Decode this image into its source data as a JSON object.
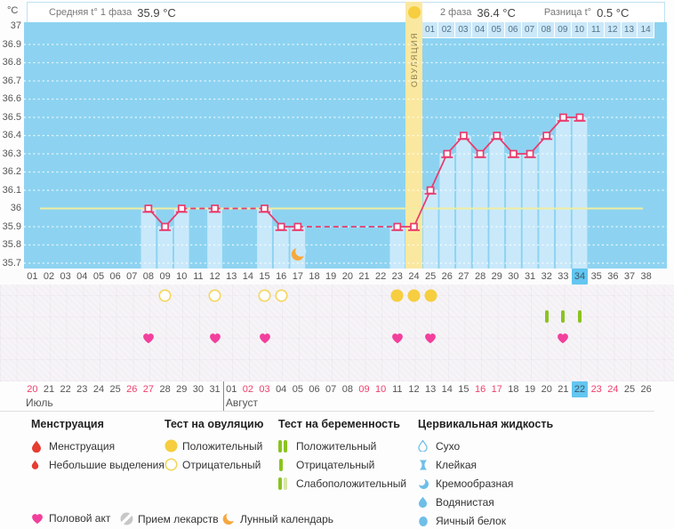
{
  "header": {
    "unit": "°C",
    "phase1_label": "Средняя t° 1 фаза",
    "phase1_value": "35.9 °C",
    "phase2_label": "2 фаза",
    "phase2_value": "36.4 °C",
    "diff_label": "Разница t°",
    "diff_value": "0.5 °C",
    "ovulation_label": "ОВУЛЯЦИЯ"
  },
  "chart_data": {
    "type": "line",
    "ylabel": "°C",
    "ylim": [
      35.7,
      37.0
    ],
    "yticks": [
      "37",
      "36.9",
      "36.8",
      "36.7",
      "36.6",
      "36.5",
      "36.4",
      "36.3",
      "36.2",
      "36.1",
      "36",
      "35.9",
      "35.8",
      "35.7"
    ],
    "coverline": 36.0,
    "grid": "dotted-horizontal",
    "cycle_days": [
      "01",
      "02",
      "03",
      "04",
      "05",
      "06",
      "07",
      "08",
      "09",
      "10",
      "11",
      "12",
      "13",
      "14",
      "15",
      "16",
      "17",
      "18",
      "19",
      "20",
      "21",
      "22",
      "23",
      "24",
      "25",
      "26",
      "27",
      "28",
      "29",
      "30",
      "31",
      "32",
      "33",
      "34",
      "35",
      "36",
      "37",
      "38"
    ],
    "current_cycle_day": "34",
    "ovulation_day": 24,
    "phase2_days": [
      "01",
      "02",
      "03",
      "04",
      "05",
      "06",
      "07",
      "08",
      "09",
      "10",
      "11",
      "12",
      "13",
      "14"
    ],
    "temps": [
      [
        8,
        36.0
      ],
      [
        9,
        35.9
      ],
      [
        10,
        36.0
      ],
      [
        12,
        36.0
      ],
      [
        15,
        36.0
      ],
      [
        16,
        35.9
      ],
      [
        17,
        35.9
      ],
      [
        23,
        35.9
      ],
      [
        24,
        35.9
      ],
      [
        25,
        36.1
      ],
      [
        26,
        36.3
      ],
      [
        27,
        36.4
      ],
      [
        28,
        36.3
      ],
      [
        29,
        36.4
      ],
      [
        30,
        36.3
      ],
      [
        31,
        36.3
      ],
      [
        32,
        36.4
      ],
      [
        33,
        36.5
      ],
      [
        34,
        36.5
      ]
    ],
    "moon_day": 17,
    "avg_phase1": 35.9,
    "avg_phase2": 36.4,
    "temp_difference": 0.5
  },
  "events": {
    "ovulation_test_positive_days": [
      23,
      24,
      25
    ],
    "ovulation_test_negative_days": [
      9,
      12,
      15,
      16
    ],
    "pregnancy_test_negative_days": [
      32,
      33,
      34
    ],
    "intercourse_days": [
      8,
      12,
      15,
      23,
      25,
      33
    ]
  },
  "calendar": {
    "month_names": [
      "Июль",
      "Август"
    ],
    "divider_after_index": 11,
    "cells": [
      {
        "t": "20",
        "m": 0,
        "red": true
      },
      {
        "t": "21",
        "m": 0
      },
      {
        "t": "22",
        "m": 0
      },
      {
        "t": "23",
        "m": 0
      },
      {
        "t": "24",
        "m": 0
      },
      {
        "t": "25",
        "m": 0
      },
      {
        "t": "26",
        "m": 0,
        "red": true
      },
      {
        "t": "27",
        "m": 0,
        "red": true
      },
      {
        "t": "28",
        "m": 0
      },
      {
        "t": "29",
        "m": 0
      },
      {
        "t": "30",
        "m": 0
      },
      {
        "t": "31",
        "m": 0
      },
      {
        "t": "01",
        "m": 1
      },
      {
        "t": "02",
        "m": 1,
        "red": true
      },
      {
        "t": "03",
        "m": 1,
        "red": true
      },
      {
        "t": "04",
        "m": 1
      },
      {
        "t": "05",
        "m": 1
      },
      {
        "t": "06",
        "m": 1
      },
      {
        "t": "07",
        "m": 1
      },
      {
        "t": "08",
        "m": 1
      },
      {
        "t": "09",
        "m": 1,
        "red": true
      },
      {
        "t": "10",
        "m": 1,
        "red": true
      },
      {
        "t": "11",
        "m": 1
      },
      {
        "t": "12",
        "m": 1
      },
      {
        "t": "13",
        "m": 1
      },
      {
        "t": "14",
        "m": 1
      },
      {
        "t": "15",
        "m": 1
      },
      {
        "t": "16",
        "m": 1,
        "red": true
      },
      {
        "t": "17",
        "m": 1,
        "red": true
      },
      {
        "t": "18",
        "m": 1
      },
      {
        "t": "19",
        "m": 1
      },
      {
        "t": "20",
        "m": 1
      },
      {
        "t": "21",
        "m": 1
      },
      {
        "t": "22",
        "m": 1,
        "today": true
      },
      {
        "t": "23",
        "m": 1,
        "red": true
      },
      {
        "t": "24",
        "m": 1,
        "red": true
      },
      {
        "t": "25",
        "m": 1
      },
      {
        "t": "26",
        "m": 1
      }
    ]
  },
  "legend": {
    "groups": [
      {
        "title": "Менструация",
        "items": [
          {
            "icon": "drop-large",
            "label": "Менструация"
          },
          {
            "icon": "drop-small",
            "label": "Небольшие выделения"
          }
        ]
      },
      {
        "title": "Тест на овуляцию",
        "items": [
          {
            "icon": "circle-filled",
            "label": "Положительный"
          },
          {
            "icon": "circle-outline",
            "label": "Отрицательный"
          }
        ]
      },
      {
        "title": "Тест на беременность",
        "items": [
          {
            "icon": "bars-double",
            "label": "Положительный"
          },
          {
            "icon": "bar-single",
            "label": "Отрицательный"
          },
          {
            "icon": "bars-weak",
            "label": "Слабоположительный"
          }
        ]
      },
      {
        "title": "Цервикальная жидкость",
        "items": [
          {
            "icon": "drop-outline",
            "label": "Сухо"
          },
          {
            "icon": "spool",
            "label": "Клейкая"
          },
          {
            "icon": "crescent-blue",
            "label": "Кремообразная"
          },
          {
            "icon": "drop-filled",
            "label": "Водянистая"
          },
          {
            "icon": "oval-filled",
            "label": "Яичный белок"
          }
        ]
      }
    ],
    "bottom": [
      {
        "icon": "heart",
        "label": "Половой акт"
      },
      {
        "icon": "pill",
        "label": "Прием лекарств"
      },
      {
        "icon": "moon",
        "label": "Лунный календарь"
      }
    ]
  },
  "colors": {
    "chart_bg": "#8dd3f1",
    "bar": "#c9e9fb",
    "line": "#e93a6c",
    "coverline": "#efeda0",
    "ovulation_column": "#fae8a0",
    "test_yellow": "#f6ce3f",
    "test_outline": "#f3d65a",
    "green": "#8bc320",
    "green_weak": "#d6e6a6",
    "heart": "#f23f9c",
    "cervical": "#6fbee8",
    "menses_red": "#e63c31",
    "moon": "#f6a83f",
    "highlight_cell": "#63c6f0",
    "red_date": "#f0406b",
    "pill_gray": "#c7c7c7"
  }
}
